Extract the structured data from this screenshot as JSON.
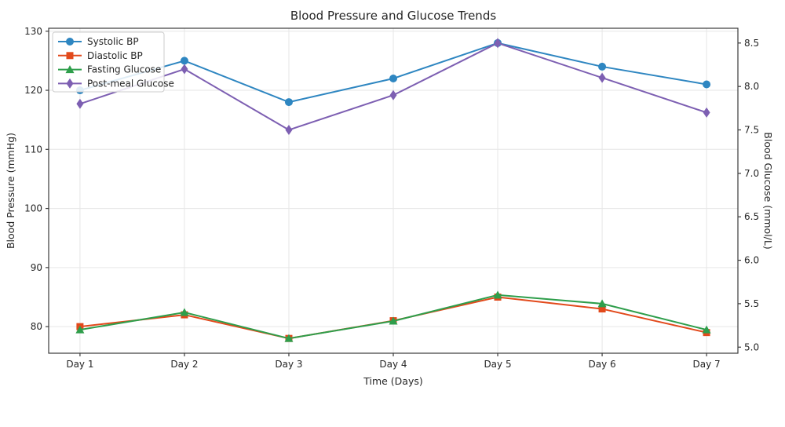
{
  "chart_data": {
    "type": "line",
    "title": "Blood Pressure and Glucose Trends",
    "xlabel": "Time (Days)",
    "ylabel_left": "Blood Pressure (mmHg)",
    "ylabel_right": "Blood Glucose (mmol/L)",
    "categories": [
      "Day 1",
      "Day 2",
      "Day 3",
      "Day 4",
      "Day 5",
      "Day 6",
      "Day 7"
    ],
    "series": [
      {
        "name": "Systolic BP",
        "axis": "left",
        "marker": "circle",
        "color": "#2E86C1",
        "values": [
          120,
          125,
          118,
          122,
          128,
          124,
          121
        ]
      },
      {
        "name": "Diastolic BP",
        "axis": "left",
        "marker": "square",
        "color": "#E2491B",
        "values": [
          80,
          82,
          78,
          81,
          85,
          83,
          79
        ]
      },
      {
        "name": "Fasting Glucose",
        "axis": "right",
        "marker": "triangle",
        "color": "#2E9E4B",
        "values": [
          5.2,
          5.4,
          5.1,
          5.3,
          5.6,
          5.5,
          5.2
        ]
      },
      {
        "name": "Post-meal Glucose",
        "axis": "right",
        "marker": "diamond",
        "color": "#7D5FB2",
        "values": [
          7.8,
          8.2,
          7.5,
          7.9,
          8.5,
          8.1,
          7.7
        ]
      }
    ],
    "yticks_left": [
      "80",
      "90",
      "100",
      "110",
      "120",
      "130"
    ],
    "yticks_right": [
      "5.0",
      "5.5",
      "6.0",
      "6.5",
      "7.0",
      "7.5",
      "8.0",
      "8.5"
    ],
    "ylim_left": [
      75.5,
      130.5
    ],
    "ylim_right": [
      4.93,
      8.67
    ],
    "xlim": [
      -0.3,
      6.3
    ],
    "grid": true,
    "legend_position": "upper left",
    "colors": {
      "grid": "#e6e6e6",
      "spine": "#3b3b3b",
      "legend_border": "#cccccc",
      "legend_fill": "#ffffff"
    }
  }
}
